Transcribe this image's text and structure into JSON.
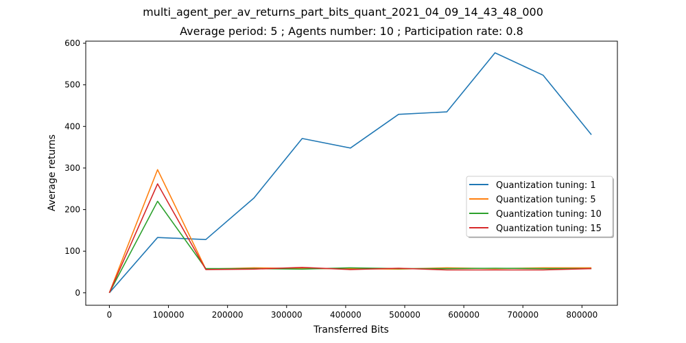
{
  "figure": {
    "suptitle": "multi_agent_per_av_returns_part_bits_quant_2021_04_09_14_43_48_000",
    "subtitle": "Average period: 5 ; Agents number: 10 ; Participation rate: 0.8"
  },
  "chart_data": {
    "type": "line",
    "title": "Average period: 5 ; Agents number: 10 ; Participation rate: 0.8",
    "xlabel": "Transferred Bits",
    "ylabel": "Average returns",
    "xlim": [
      -40000,
      860000
    ],
    "ylim": [
      -30,
      605
    ],
    "xticks": [
      0,
      100000,
      200000,
      300000,
      400000,
      500000,
      600000,
      700000,
      800000
    ],
    "yticks": [
      0,
      100,
      200,
      300,
      400,
      500,
      600
    ],
    "grid": false,
    "legend_position": "center-right",
    "x": [
      0,
      81600,
      163200,
      244800,
      326400,
      408000,
      489600,
      571200,
      652800,
      734400,
      816000
    ],
    "series": [
      {
        "name": "Quantization tuning: 1",
        "color": "#1f77b4",
        "values": [
          0,
          133,
          128,
          228,
          371,
          348,
          429,
          435,
          577,
          523,
          380
        ]
      },
      {
        "name": "Quantization tuning: 5",
        "color": "#ff7f0e",
        "values": [
          0,
          296,
          57,
          60,
          58,
          58,
          57,
          60,
          58,
          60,
          60
        ]
      },
      {
        "name": "Quantization tuning: 10",
        "color": "#2ca02c",
        "values": [
          0,
          220,
          58,
          58,
          57,
          60,
          58,
          58,
          59,
          58,
          58
        ]
      },
      {
        "name": "Quantization tuning: 15",
        "color": "#d62728",
        "values": [
          0,
          262,
          56,
          57,
          61,
          56,
          59,
          55,
          55,
          55,
          58
        ]
      }
    ]
  }
}
